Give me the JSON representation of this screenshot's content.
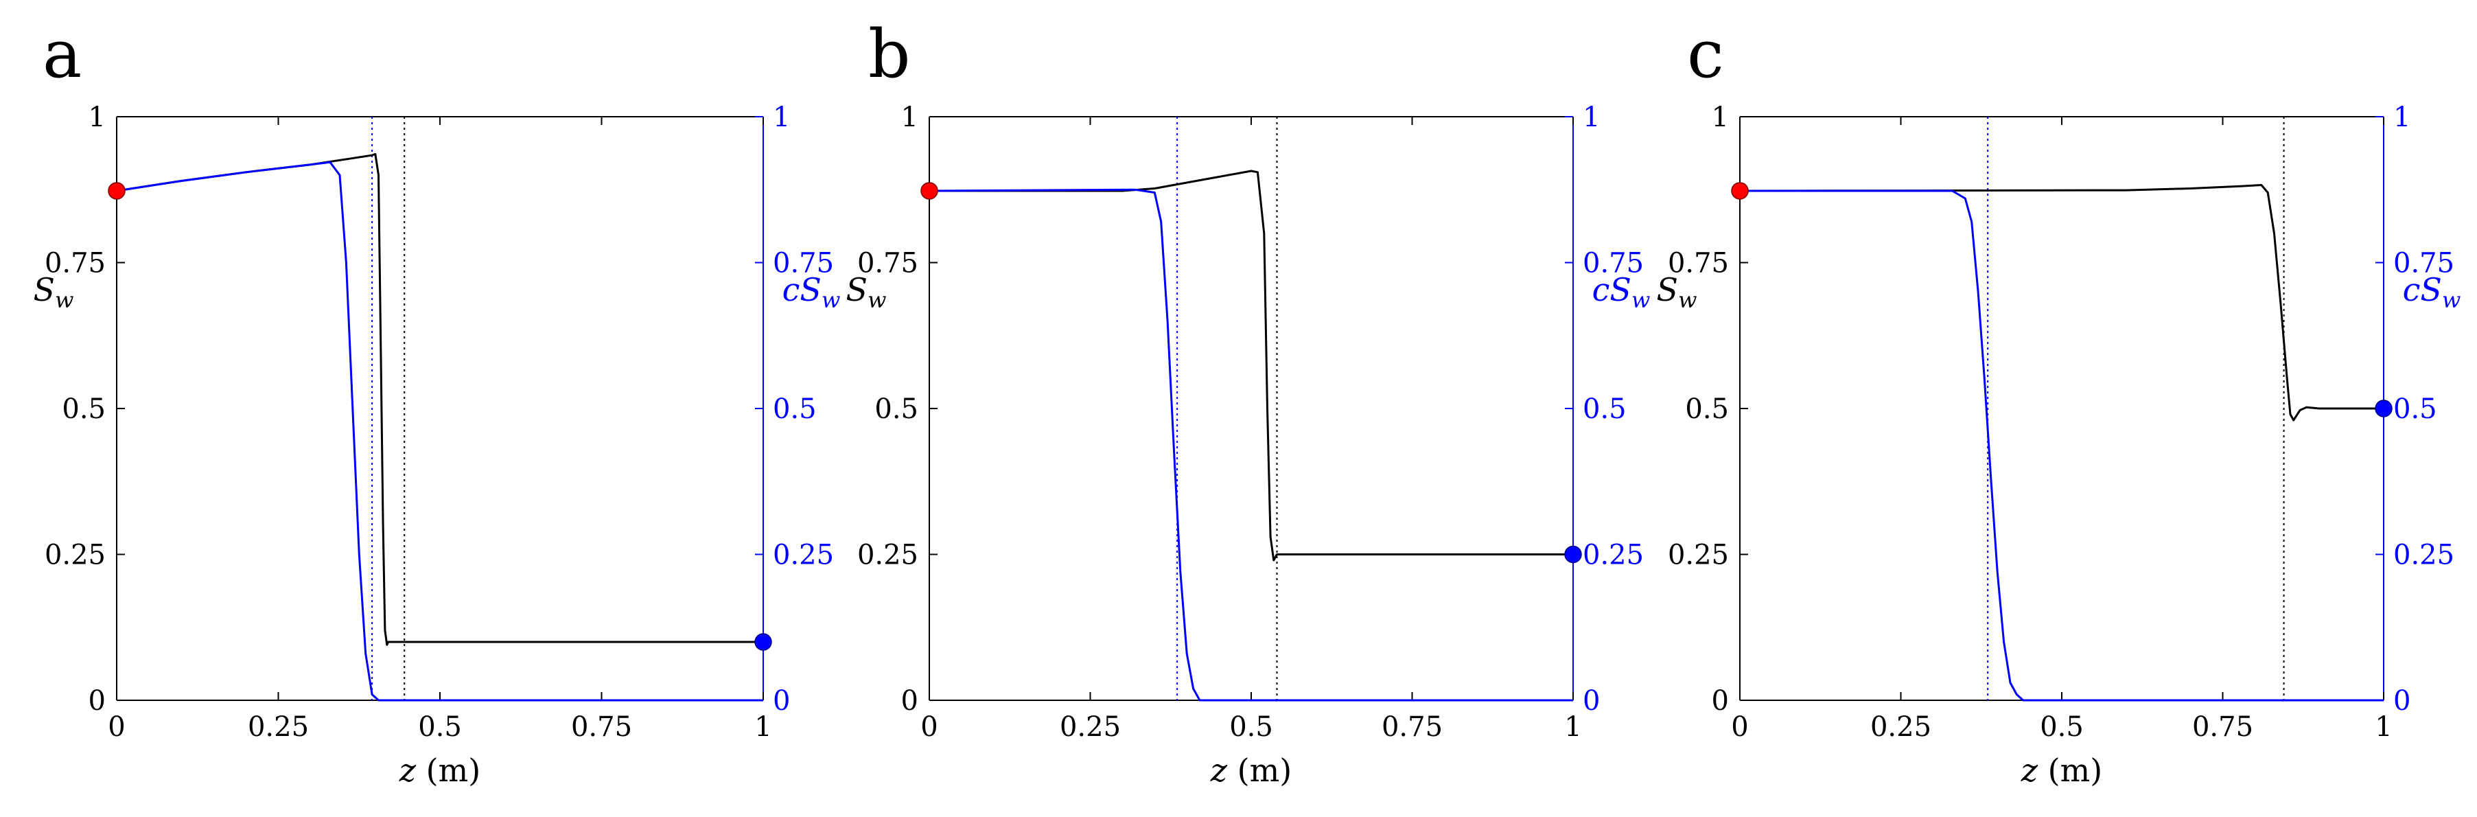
{
  "chart_data": [
    {
      "panel_label": "a",
      "type": "line",
      "xlabel": {
        "var": "z",
        "unit": "(m)"
      },
      "ylabel_left": {
        "var": "S",
        "sub": "w"
      },
      "ylabel_right": {
        "var": "cS",
        "sub": "w"
      },
      "xlim": [
        0,
        1
      ],
      "ylim_left": [
        0,
        1
      ],
      "ylim_right": [
        0,
        1
      ],
      "xticks": [
        "0",
        "0.25",
        "0.5",
        "0.75",
        "1"
      ],
      "yticks_left": [
        "0",
        "0.25",
        "0.5",
        "0.75",
        "1"
      ],
      "yticks_right": [
        "0",
        "0.25",
        "0.5",
        "0.75",
        "1"
      ],
      "grid": false,
      "series": [
        {
          "axis": "left",
          "color": "#000000",
          "x": [
            0,
            0.1,
            0.2,
            0.3,
            0.36,
            0.395,
            0.4,
            0.405,
            0.408,
            0.412,
            0.415,
            0.418,
            0.42,
            1.0
          ],
          "y": [
            0.873,
            0.89,
            0.905,
            0.918,
            0.928,
            0.934,
            0.936,
            0.9,
            0.65,
            0.3,
            0.12,
            0.095,
            0.1,
            0.1
          ]
        },
        {
          "axis": "right",
          "color": "#0000ff",
          "x": [
            0,
            0.1,
            0.2,
            0.3,
            0.33,
            0.345,
            0.355,
            0.365,
            0.375,
            0.385,
            0.395,
            0.405,
            0.42,
            1.0
          ],
          "y": [
            0.873,
            0.89,
            0.905,
            0.918,
            0.922,
            0.9,
            0.75,
            0.5,
            0.25,
            0.08,
            0.01,
            0.0,
            0.0,
            0.0
          ]
        }
      ],
      "vlines": [
        {
          "x": 0.395,
          "color": "#0000ff",
          "style": "dotted"
        },
        {
          "x": 0.445,
          "color": "#000000",
          "style": "dotted"
        }
      ],
      "markers": [
        {
          "x": 0,
          "y": 0.873,
          "color": "#ff0000"
        },
        {
          "x": 1,
          "y": 0.1,
          "color": "#0000ff"
        }
      ]
    },
    {
      "panel_label": "b",
      "type": "line",
      "xlabel": {
        "var": "z",
        "unit": "(m)"
      },
      "ylabel_left": {
        "var": "S",
        "sub": "w"
      },
      "ylabel_right": {
        "var": "cS",
        "sub": "w"
      },
      "xlim": [
        0,
        1
      ],
      "ylim_left": [
        0,
        1
      ],
      "ylim_right": [
        0,
        1
      ],
      "xticks": [
        "0",
        "0.25",
        "0.5",
        "0.75",
        "1"
      ],
      "yticks_left": [
        "0",
        "0.25",
        "0.5",
        "0.75",
        "1"
      ],
      "yticks_right": [
        "0",
        "0.25",
        "0.5",
        "0.75",
        "1"
      ],
      "grid": false,
      "series": [
        {
          "axis": "left",
          "color": "#000000",
          "x": [
            0,
            0.3,
            0.35,
            0.4,
            0.45,
            0.5,
            0.51,
            0.52,
            0.525,
            0.53,
            0.535,
            0.54,
            0.545,
            1.0
          ],
          "y": [
            0.873,
            0.873,
            0.877,
            0.887,
            0.897,
            0.907,
            0.905,
            0.8,
            0.5,
            0.28,
            0.24,
            0.25,
            0.25,
            0.25
          ]
        },
        {
          "axis": "right",
          "color": "#0000ff",
          "x": [
            0,
            0.32,
            0.35,
            0.36,
            0.37,
            0.38,
            0.39,
            0.4,
            0.41,
            0.42,
            0.44,
            1.0
          ],
          "y": [
            0.873,
            0.875,
            0.87,
            0.82,
            0.65,
            0.43,
            0.22,
            0.08,
            0.02,
            0.0,
            0.0,
            0.0
          ]
        }
      ],
      "vlines": [
        {
          "x": 0.385,
          "color": "#0000ff",
          "style": "dotted"
        },
        {
          "x": 0.54,
          "color": "#000000",
          "style": "dotted"
        }
      ],
      "markers": [
        {
          "x": 0,
          "y": 0.873,
          "color": "#ff0000"
        },
        {
          "x": 1,
          "y": 0.25,
          "color": "#0000ff"
        }
      ]
    },
    {
      "panel_label": "c",
      "type": "line",
      "xlabel": {
        "var": "z",
        "unit": "(m)"
      },
      "ylabel_left": {
        "var": "S",
        "sub": "w"
      },
      "ylabel_right": {
        "var": "cS",
        "sub": "w"
      },
      "xlim": [
        0,
        1
      ],
      "ylim_left": [
        0,
        1
      ],
      "ylim_right": [
        0,
        1
      ],
      "xticks": [
        "0",
        "0.25",
        "0.5",
        "0.75",
        "1"
      ],
      "yticks_left": [
        "0",
        "0.25",
        "0.5",
        "0.75",
        "1"
      ],
      "yticks_right": [
        "0",
        "0.25",
        "0.5",
        "0.75",
        "1"
      ],
      "grid": false,
      "series": [
        {
          "axis": "left",
          "color": "#000000",
          "x": [
            0,
            0.6,
            0.7,
            0.78,
            0.81,
            0.82,
            0.83,
            0.84,
            0.85,
            0.855,
            0.86,
            0.87,
            0.88,
            0.9,
            1.0
          ],
          "y": [
            0.873,
            0.874,
            0.877,
            0.881,
            0.883,
            0.87,
            0.8,
            0.68,
            0.55,
            0.49,
            0.48,
            0.497,
            0.502,
            0.5,
            0.5
          ]
        },
        {
          "axis": "right",
          "color": "#0000ff",
          "x": [
            0,
            0.33,
            0.35,
            0.36,
            0.37,
            0.38,
            0.39,
            0.4,
            0.41,
            0.42,
            0.43,
            0.44,
            0.45,
            1.0
          ],
          "y": [
            0.873,
            0.873,
            0.86,
            0.82,
            0.7,
            0.55,
            0.38,
            0.22,
            0.1,
            0.03,
            0.01,
            0.0,
            0.0,
            0.0
          ]
        }
      ],
      "vlines": [
        {
          "x": 0.385,
          "color": "#0000ff",
          "style": "dotted"
        },
        {
          "x": 0.845,
          "color": "#000000",
          "style": "dotted"
        }
      ],
      "markers": [
        {
          "x": 0,
          "y": 0.873,
          "color": "#ff0000"
        },
        {
          "x": 1,
          "y": 0.5,
          "color": "#0000ff"
        }
      ]
    }
  ]
}
